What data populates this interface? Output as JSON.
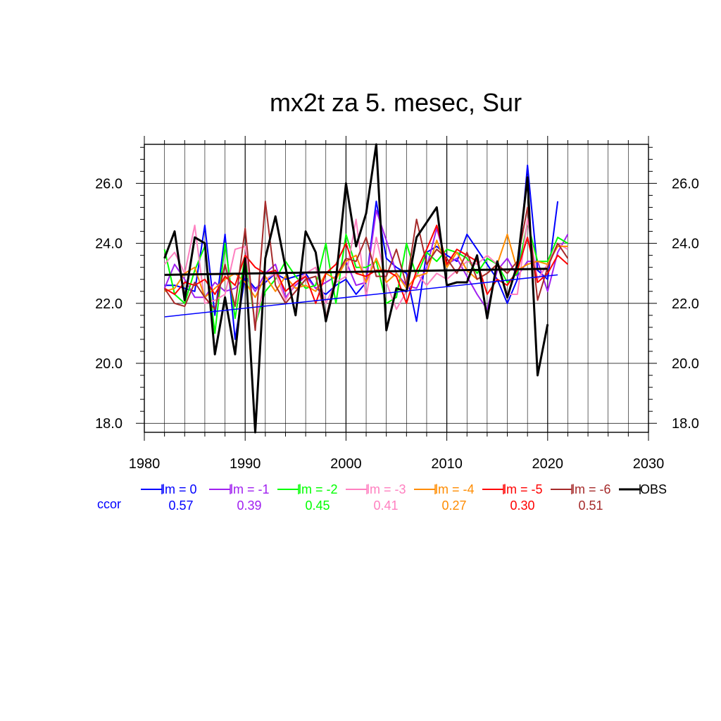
{
  "chart_data": {
    "type": "line",
    "title": "mx2t za 5. mesec, Sur",
    "xlabel": "",
    "ylabel": "",
    "xlim": [
      1980,
      2030
    ],
    "ylim": [
      17.7,
      27.3
    ],
    "xticks": [
      "1980",
      "1990",
      "2000",
      "2010",
      "2020",
      "2030"
    ],
    "xtick_values": [
      1980,
      1990,
      2000,
      2010,
      2020,
      2030
    ],
    "yticks": [
      "18.0",
      "20.0",
      "22.0",
      "24.0",
      "26.0"
    ],
    "ytick_values": [
      18,
      20,
      22,
      24,
      26
    ],
    "grid": true,
    "legend_position": "bottom",
    "ccor_label": "ccor",
    "series": [
      {
        "name": "lm = 0",
        "color": "#0000ff",
        "ccor": "0.57",
        "x_start": 1982,
        "values": [
          22.6,
          22.6,
          22.5,
          22.4,
          24.6,
          21.6,
          24.3,
          20.8,
          22.9,
          22.5,
          22.7,
          23.0,
          22.8,
          22.9,
          23.0,
          22.5,
          22.3,
          22.6,
          22.8,
          22.3,
          22.7,
          25.4,
          23.5,
          23.2,
          23.0,
          21.4,
          23.7,
          23.9,
          23.6,
          23.4,
          24.3,
          23.8,
          23.3,
          22.8,
          22.0,
          22.8,
          26.6,
          23.1,
          22.8,
          25.4
        ]
      },
      {
        "name": "lm = -1",
        "color": "#a020f0",
        "ccor": "0.39",
        "x_start": 1982,
        "values": [
          22.5,
          23.3,
          22.8,
          22.2,
          22.2,
          22.7,
          22.4,
          22.5,
          22.9,
          22.4,
          23.0,
          23.3,
          22.2,
          22.6,
          22.9,
          22.5,
          22.7,
          22.9,
          23.4,
          22.6,
          22.7,
          25.1,
          24.1,
          23.0,
          22.6,
          22.5,
          23.2,
          24.5,
          23.3,
          23.5,
          22.9,
          22.3,
          21.8,
          23.1,
          23.5,
          22.9,
          23.4,
          23.4,
          22.4,
          23.7,
          24.3
        ]
      },
      {
        "name": "lm = -2",
        "color": "#00ff00",
        "ccor": "0.45",
        "x_start": 1982,
        "values": [
          23.8,
          22.3,
          22.0,
          23.1,
          23.9,
          21.0,
          24.0,
          21.5,
          23.6,
          21.3,
          22.4,
          22.8,
          23.4,
          22.9,
          22.5,
          22.6,
          24.0,
          22.0,
          24.3,
          23.2,
          23.2,
          23.4,
          22.0,
          22.2,
          24.0,
          22.9,
          23.7,
          23.4,
          23.8,
          23.7,
          23.5,
          23.0,
          23.5,
          23.3,
          22.7,
          23.0,
          24.7,
          23.4,
          23.4,
          24.2,
          24.0
        ]
      },
      {
        "name": "lm = -3",
        "color": "#ff80c0",
        "ccor": "0.41",
        "x_start": 1982,
        "values": [
          23.3,
          23.7,
          23.0,
          24.6,
          22.0,
          22.1,
          22.3,
          23.8,
          23.9,
          21.3,
          22.8,
          23.0,
          22.1,
          22.7,
          23.0,
          23.2,
          22.0,
          22.7,
          22.9,
          24.8,
          22.2,
          24.2,
          22.7,
          21.8,
          22.4,
          23.0,
          22.6,
          23.0,
          22.8,
          23.1,
          23.4,
          23.3,
          23.6,
          23.3,
          22.3,
          22.3,
          24.8,
          22.8,
          23.3,
          24.0,
          23.8
        ]
      },
      {
        "name": "lm = -4",
        "color": "#ff8c00",
        "ccor": "0.27",
        "x_start": 1982,
        "values": [
          22.4,
          22.5,
          23.0,
          23.2,
          22.2,
          22.5,
          22.8,
          23.0,
          22.7,
          22.2,
          22.9,
          22.4,
          22.9,
          22.5,
          22.6,
          22.4,
          23.0,
          22.8,
          23.4,
          23.6,
          22.7,
          23.5,
          22.7,
          23.0,
          22.5,
          22.9,
          23.0,
          24.1,
          23.2,
          23.7,
          23.1,
          22.8,
          23.0,
          23.3,
          24.3,
          23.1,
          23.3,
          23.4,
          23.3,
          23.9,
          23.9
        ]
      },
      {
        "name": "lm = -5",
        "color": "#ff0000",
        "ccor": "0.30",
        "x_start": 1982,
        "values": [
          22.5,
          22.3,
          22.7,
          22.6,
          22.8,
          22.3,
          22.9,
          22.6,
          23.6,
          23.2,
          23.0,
          23.1,
          22.4,
          22.7,
          22.9,
          22.0,
          23.0,
          23.3,
          24.0,
          23.0,
          22.9,
          23.1,
          23.1,
          22.9,
          22.0,
          23.1,
          23.8,
          24.6,
          23.3,
          23.8,
          23.6,
          23.4,
          22.3,
          22.8,
          22.6,
          23.1,
          24.2,
          22.7,
          23.0,
          23.6,
          23.3
        ]
      },
      {
        "name": "lm = -6",
        "color": "#a52a2a",
        "ccor": "0.51",
        "x_start": 1982,
        "values": [
          22.5,
          22.0,
          21.9,
          22.7,
          22.2,
          21.8,
          23.3,
          21.9,
          24.5,
          21.1,
          25.4,
          22.6,
          22.0,
          22.4,
          22.8,
          22.9,
          21.5,
          22.9,
          23.5,
          23.4,
          24.2,
          22.9,
          22.9,
          23.8,
          22.6,
          24.8,
          23.3,
          23.8,
          23.5,
          23.0,
          23.7,
          22.8,
          23.0,
          23.3,
          23.0,
          23.4,
          25.2,
          22.1,
          23.2,
          24.0,
          23.5
        ]
      },
      {
        "name": "OBS",
        "color": "#000000",
        "ccor": "",
        "x_start": 1982,
        "values": [
          23.5,
          24.4,
          22.1,
          24.2,
          24.0,
          20.3,
          22.2,
          20.3,
          23.5,
          17.7,
          23.5,
          24.9,
          23.2,
          21.6,
          24.4,
          23.7,
          21.4,
          22.8,
          26.0,
          23.9,
          25.0,
          27.3,
          21.1,
          22.5,
          22.4,
          24.2,
          24.7,
          25.2,
          22.6,
          22.7,
          22.7,
          23.6,
          21.5,
          23.4,
          22.2,
          23.3,
          26.2,
          19.6,
          21.3
        ]
      }
    ],
    "trend_lines": [
      {
        "name": "lm = 0 trend",
        "color": "#0000ff",
        "x": [
          1982,
          2021
        ],
        "y": [
          21.55,
          22.95
        ]
      },
      {
        "name": "OBS trend",
        "color": "#000000",
        "x": [
          1982,
          2020
        ],
        "y": [
          22.95,
          23.15
        ]
      }
    ]
  }
}
